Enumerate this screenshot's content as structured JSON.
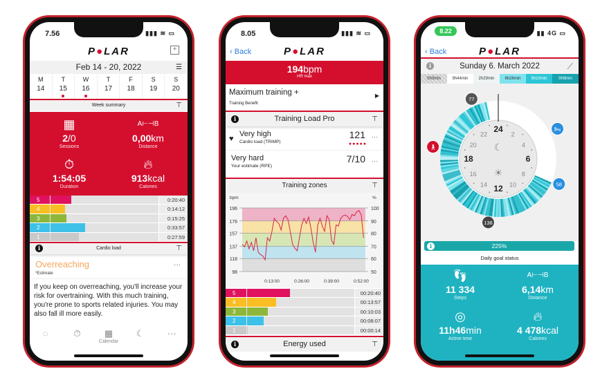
{
  "colors": {
    "polar_red": "#d40f2e",
    "teal": "#1fb3c1",
    "zone5": "#e0115f",
    "zone4": "#f9be23",
    "zone3": "#8db73a",
    "zone2": "#3ec1e8",
    "zone1": "#c9c9c9"
  },
  "calendar_screen": {
    "status_time": "7.56",
    "logo": "POLAR",
    "date_range": "Feb 14 - 20, 2022",
    "days": [
      {
        "d": "M",
        "n": "14",
        "dot": false
      },
      {
        "d": "T",
        "n": "15",
        "dot": true
      },
      {
        "d": "W",
        "n": "16",
        "dot": true
      },
      {
        "d": "T",
        "n": "17",
        "dot": false
      },
      {
        "d": "F",
        "n": "18",
        "dot": false
      },
      {
        "d": "S",
        "n": "19",
        "dot": false
      },
      {
        "d": "S",
        "n": "20",
        "dot": false
      }
    ],
    "week_summary_label": "Week summary",
    "stats": {
      "sessions": {
        "value": "2",
        "suffix": "/0",
        "label": "Sessions"
      },
      "distance": {
        "value": "0,00",
        "unit": "km",
        "label": "Distance"
      },
      "duration": {
        "value": "1:54:05",
        "label": "Duration"
      },
      "calories": {
        "value": "913",
        "unit": "kcal",
        "label": "Calories"
      }
    },
    "zones": [
      {
        "zone": "5",
        "time": "0:20:40"
      },
      {
        "zone": "4",
        "time": "0:14:12"
      },
      {
        "zone": "3",
        "time": "0:15:25"
      },
      {
        "zone": "2",
        "time": "0:33:57"
      },
      {
        "zone": "1",
        "time": "0:27:59"
      }
    ],
    "cardio_load_label": "Cardio load",
    "status_title": "Overreaching",
    "estimate_label": "*Estimate",
    "description": "If you keep on overreaching, you'll increase your risk for overtraining. With this much training, you're prone to sports related injuries. You may also fall ill more easily.",
    "nav": [
      {
        "icon": "activity-icon",
        "label": ""
      },
      {
        "icon": "stopwatch-icon",
        "label": ""
      },
      {
        "icon": "calendar-icon",
        "label": "Calendar",
        "active": true
      },
      {
        "icon": "moon-icon",
        "label": ""
      },
      {
        "icon": "more-icon",
        "label": ""
      }
    ]
  },
  "training_screen": {
    "status_time": "8.05",
    "back_label": "Back",
    "logo": "POLAR",
    "hr_max_value": "194",
    "hr_max_unit": "bpm",
    "hr_max_label": "HR max",
    "training_benefit": "Maximum training +",
    "training_benefit_label": "Training Benefit",
    "training_load_title": "Training Load Pro",
    "cardio_load": {
      "level": "Very high",
      "label": "Cardio load (TRIMP)",
      "value": "121",
      "dots": 5
    },
    "rpe": {
      "level": "Very hard",
      "label": "Your estimate (RPE)",
      "value": "7/10"
    },
    "training_zones_title": "Training zones",
    "zones": [
      {
        "zone": "5",
        "time": "00:20:40"
      },
      {
        "zone": "4",
        "time": "00:13:57"
      },
      {
        "zone": "3",
        "time": "00:10:03"
      },
      {
        "zone": "2",
        "time": "00:08:07"
      },
      {
        "zone": "1",
        "time": "00:00:14"
      }
    ],
    "energy_used_title": "Energy used"
  },
  "chart_data": {
    "type": "line",
    "ylabel": "bpm",
    "y2label": "%",
    "yticks": [
      "196",
      "176",
      "157",
      "137",
      "118",
      "98"
    ],
    "y2ticks": [
      "100",
      "90",
      "80",
      "70",
      "60",
      "50"
    ],
    "ylim": [
      98,
      196
    ],
    "xticks": [
      "0:13:00",
      "0:26:00",
      "0:39:00",
      "0:52:00"
    ],
    "xlim_minutes": [
      0,
      53
    ],
    "zone_bands": [
      {
        "zone": "5",
        "from": 176,
        "to": 196
      },
      {
        "zone": "4",
        "from": 157,
        "to": 176
      },
      {
        "zone": "3",
        "from": 137,
        "to": 157
      },
      {
        "zone": "2",
        "from": 118,
        "to": 137
      },
      {
        "zone": "1",
        "from": 98,
        "to": 118
      }
    ],
    "x_minutes": [
      0,
      1,
      2,
      3,
      4,
      5,
      6,
      7,
      8,
      9,
      10,
      11,
      12,
      13,
      14,
      15,
      16,
      17,
      18,
      19,
      20,
      21,
      22,
      23,
      24,
      25,
      26,
      27,
      28,
      29,
      30,
      31,
      32,
      33,
      34,
      35,
      36,
      37,
      38,
      39,
      40,
      41,
      42,
      43,
      44,
      45,
      46,
      47,
      48,
      49,
      50,
      51,
      52,
      53
    ],
    "hr": [
      140,
      136,
      145,
      133,
      143,
      130,
      150,
      128,
      124,
      122,
      116,
      150,
      145,
      160,
      180,
      175,
      172,
      162,
      180,
      184,
      178,
      160,
      140,
      134,
      130,
      150,
      170,
      180,
      172,
      182,
      165,
      143,
      128,
      170,
      180,
      168,
      160,
      184,
      178,
      146,
      140,
      170,
      168,
      180,
      184,
      185,
      183,
      178,
      186,
      184,
      190,
      192,
      185,
      150
    ]
  },
  "activity_screen": {
    "status_time": "8.22",
    "network": "4G",
    "back_label": "Back",
    "logo": "POLAR",
    "date": "Sunday 6. March 2022",
    "segments": [
      {
        "label": "0h0min",
        "color": "#d6d6d6"
      },
      {
        "label": "9h44min",
        "color": "#ffffff"
      },
      {
        "label": "2h29min",
        "color": "#eef4f4"
      },
      {
        "label": "6h26min",
        "color": "#7fe3ee"
      },
      {
        "label": "5h10min",
        "color": "#2cc6d6"
      },
      {
        "label": "0h9min",
        "color": "#16a2ae"
      }
    ],
    "clock_hours": [
      "24",
      "2",
      "4",
      "6",
      "8",
      "10",
      "12",
      "14",
      "16",
      "18",
      "20",
      "22"
    ],
    "markers": [
      {
        "label": "77",
        "type": "hr-min"
      },
      {
        "label": "58",
        "type": "resting-hr"
      },
      {
        "label": "138",
        "type": "hr-max"
      },
      {
        "label": "",
        "type": "walking"
      },
      {
        "label": "",
        "type": "sleep"
      }
    ],
    "goal_percent": "225%",
    "goal_fraction": 1.0,
    "goal_label": "Daily goal status",
    "stats": {
      "steps": {
        "value": "11 334",
        "label": "Steps"
      },
      "distance": {
        "value": "6,14",
        "unit": "km",
        "label": "Distance"
      },
      "active_time": {
        "value": "11h46",
        "unit": "min",
        "label": "Active time"
      },
      "calories": {
        "value": "4 478",
        "unit": "kcal",
        "label": "Calories"
      }
    }
  }
}
